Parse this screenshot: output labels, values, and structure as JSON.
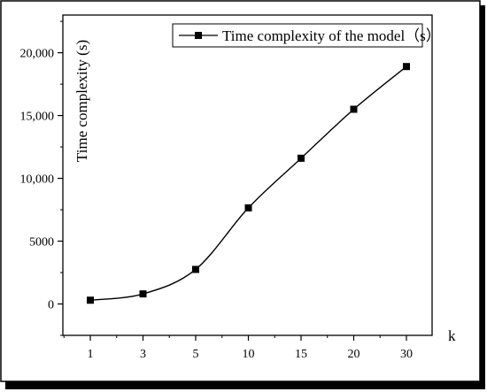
{
  "chart_data": {
    "type": "line",
    "title": "",
    "xlabel": "k",
    "ylabel": "Time complexity (s)",
    "categories": [
      "1",
      "3",
      "5",
      "10",
      "15",
      "20",
      "30"
    ],
    "series": [
      {
        "name": "Time complexity of the model（s）",
        "values": [
          300,
          800,
          2750,
          7650,
          11600,
          15500,
          18900
        ]
      }
    ],
    "ylim": [
      -2500,
      23000
    ],
    "yticks": [
      0,
      5000,
      10000,
      15000,
      20000
    ],
    "ytick_labels": [
      "0",
      "5000",
      "10,000",
      "15,000",
      "20,000"
    ],
    "marker": "square",
    "smooth": true,
    "grid": false,
    "legend": "top-right",
    "colors": {
      "line": "#000000",
      "marker": "#000000",
      "shadow": "#000000",
      "background": "#ffffff"
    }
  }
}
